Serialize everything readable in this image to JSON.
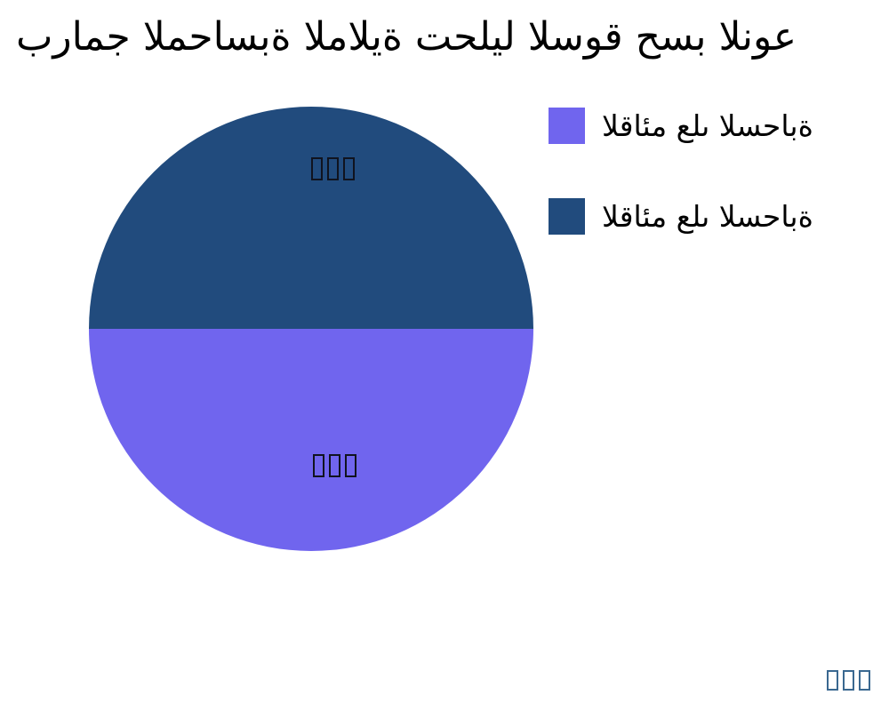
{
  "chart_data": {
    "type": "pie",
    "title": "برامج المحاسبة المالية تحليل السوق حسب النوع",
    "background": "#FFFFFF",
    "text_color": "#000000",
    "slices": [
      {
        "label": "القائم على السحابة",
        "value": 50,
        "color": "#214B7D",
        "position": "top-half",
        "value_label": "□□□"
      },
      {
        "label": "القائم على السحابة",
        "value": 50,
        "color": "#7065EE",
        "position": "bottom-half",
        "value_label": "□□□"
      }
    ],
    "legend": {
      "position": "top-right",
      "items": [
        {
          "label": "القائم على السحابة",
          "color": "#7065EE"
        },
        {
          "label": "القائم على السحابة",
          "color": "#214B7D"
        }
      ]
    },
    "footer_text": "□□□",
    "footer_color": "#3A6890"
  }
}
